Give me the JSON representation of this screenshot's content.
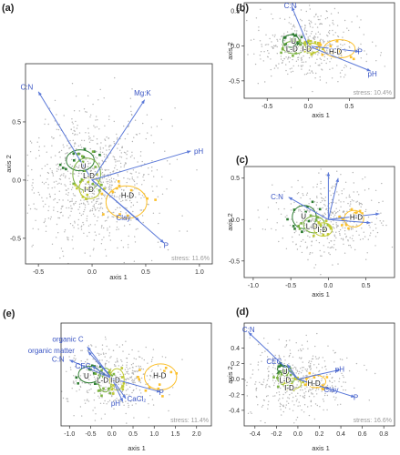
{
  "colors": {
    "arrow": "#5a78d8",
    "arrow_text": "#3a55c4",
    "points": "#b4b4b4",
    "U": "#2e7d32",
    "LD": "#7cb342",
    "ID": "#c0ca33",
    "HD": "#fbc02d",
    "frame": "#333333",
    "stress": "#9a9a9a"
  },
  "chart_data": [
    {
      "panel_label": "(a)",
      "type": "scatter",
      "xlabel": "axis 1",
      "ylabel": "axis 2",
      "xlim": [
        -0.62,
        1.12
      ],
      "ylim": [
        -0.72,
        1.0
      ],
      "xticks": [
        -0.5,
        0.0,
        0.5,
        1.0
      ],
      "xtick_labels": [
        "-0.5",
        "0.0",
        "0.5",
        "1.0"
      ],
      "yticks": [
        -0.5,
        0.0,
        0.5
      ],
      "ytick_labels": [
        "-0.5",
        "0.0",
        "0.5"
      ],
      "stress": "stress: 11.6%",
      "origin": [
        0.0,
        0.0
      ],
      "arrows": [
        {
          "label": "C:N",
          "x": -0.5,
          "y": 0.76,
          "lx": -0.55,
          "ly": 0.8
        },
        {
          "label": "Mg:K",
          "x": 0.49,
          "y": 0.69,
          "lx": 0.47,
          "ly": 0.75
        },
        {
          "label": "pH",
          "x": 0.92,
          "y": 0.25,
          "lx": 0.95,
          "ly": 0.25
        },
        {
          "label": "Clay",
          "x": 0.44,
          "y": -0.35,
          "lx": 0.36,
          "ly": -0.32
        },
        {
          "label": "P",
          "x": 0.67,
          "y": -0.54,
          "lx": 0.69,
          "ly": -0.56
        }
      ],
      "groups": [
        {
          "label": "U",
          "cx": -0.11,
          "cy": 0.17,
          "rx": 0.13,
          "ry": 0.09,
          "color": "#2e7d32",
          "lx": -0.08,
          "ly": 0.12
        },
        {
          "label": "L-D",
          "cx": -0.05,
          "cy": 0.05,
          "rx": 0.13,
          "ry": 0.14,
          "color": "#7cb342",
          "lx": -0.03,
          "ly": 0.04
        },
        {
          "label": "I-D",
          "cx": -0.02,
          "cy": -0.07,
          "rx": 0.1,
          "ry": 0.09,
          "color": "#c0ca33",
          "lx": -0.03,
          "ly": -0.08
        },
        {
          "label": "H-D",
          "cx": 0.32,
          "cy": -0.19,
          "rx": 0.19,
          "ry": 0.14,
          "color": "#fbc02d",
          "lx": 0.33,
          "ly": -0.13
        }
      ]
    },
    {
      "panel_label": "(b)",
      "type": "scatter",
      "xlabel": "axis 1",
      "ylabel": "axis 2",
      "xlim": [
        -0.78,
        1.05
      ],
      "ylim": [
        -0.75,
        0.62
      ],
      "xticks": [
        -0.5,
        0.0,
        0.5
      ],
      "xtick_labels": [
        "-0.5",
        "0.0",
        "0.5"
      ],
      "yticks": [
        -0.5,
        0.0,
        0.5
      ],
      "ytick_labels": [
        "-0.5",
        "0.0",
        "0.5"
      ],
      "stress": "stress: 10.4%",
      "origin": [
        0.0,
        0.0
      ],
      "arrows": [
        {
          "label": "C:N",
          "x": -0.2,
          "y": 0.56,
          "lx": -0.22,
          "ly": 0.58
        },
        {
          "label": "P",
          "x": 0.62,
          "y": -0.08,
          "lx": 0.63,
          "ly": -0.08
        },
        {
          "label": "pH",
          "x": 0.76,
          "y": -0.36,
          "lx": 0.78,
          "ly": -0.4
        }
      ],
      "groups": [
        {
          "label": "U",
          "cx": -0.21,
          "cy": 0.07,
          "rx": 0.1,
          "ry": 0.09,
          "color": "#2e7d32",
          "lx": -0.18,
          "ly": 0.07
        },
        {
          "label": "L-D",
          "cx": -0.17,
          "cy": -0.02,
          "rx": 0.14,
          "ry": 0.09,
          "color": "#7cb342",
          "lx": -0.2,
          "ly": -0.04
        },
        {
          "label": "I-D",
          "cx": 0.04,
          "cy": -0.03,
          "rx": 0.1,
          "ry": 0.07,
          "color": "#c0ca33",
          "lx": -0.02,
          "ly": -0.04
        },
        {
          "label": "H-D",
          "cx": 0.38,
          "cy": -0.04,
          "rx": 0.19,
          "ry": 0.13,
          "color": "#fbc02d",
          "lx": 0.33,
          "ly": -0.08
        }
      ]
    },
    {
      "panel_label": "(c)",
      "type": "scatter",
      "xlabel": "axis 1",
      "ylabel": "axis 2",
      "xlim": [
        -1.12,
        0.88
      ],
      "ylim": [
        -0.7,
        0.64
      ],
      "xticks": [
        -1.0,
        -0.5,
        0.0,
        0.5
      ],
      "xtick_labels": [
        "-1.0",
        "-0.5",
        "0.0",
        "0.5"
      ],
      "yticks": [
        -0.5,
        0.0,
        0.5
      ],
      "ytick_labels": [
        "-0.5",
        "0.0",
        "0.5"
      ],
      "stress": "",
      "origin": [
        0.0,
        0.0
      ],
      "arrows": [
        {
          "label": "C:N",
          "x": -0.53,
          "y": 0.27,
          "lx": -0.6,
          "ly": 0.28
        },
        {
          "label": "",
          "x": 0.0,
          "y": 0.57,
          "lx": 0.0,
          "ly": 0.6
        },
        {
          "label": "",
          "x": 0.13,
          "y": 0.5,
          "lx": 0.13,
          "ly": 0.5
        },
        {
          "label": "",
          "x": 0.68,
          "y": 0.07,
          "lx": 0.68,
          "ly": 0.07
        },
        {
          "label": "",
          "x": 0.56,
          "y": -0.04,
          "lx": 0.56,
          "ly": -0.04
        }
      ],
      "groups": [
        {
          "label": "U",
          "cx": -0.32,
          "cy": 0.03,
          "rx": 0.16,
          "ry": 0.14,
          "color": "#2e7d32",
          "lx": -0.33,
          "ly": 0.04
        },
        {
          "label": "L-D",
          "cx": -0.19,
          "cy": -0.06,
          "rx": 0.14,
          "ry": 0.1,
          "color": "#7cb342",
          "lx": -0.22,
          "ly": -0.08
        },
        {
          "label": "I-D",
          "cx": -0.07,
          "cy": -0.12,
          "rx": 0.12,
          "ry": 0.08,
          "color": "#c0ca33",
          "lx": -0.08,
          "ly": -0.12
        },
        {
          "label": "H-D",
          "cx": 0.34,
          "cy": 0.01,
          "rx": 0.13,
          "ry": 0.1,
          "color": "#fbc02d",
          "lx": 0.37,
          "ly": 0.03
        }
      ]
    },
    {
      "panel_label": "(e)",
      "type": "scatter",
      "xlabel": "axis 1",
      "ylabel": "",
      "xlim": [
        -1.2,
        2.35
      ],
      "ylim": [
        -1.5,
        1.75
      ],
      "xticks": [
        -1.0,
        -0.5,
        0.0,
        0.5,
        1.0,
        1.5,
        2.0
      ],
      "xtick_labels": [
        "-1.0",
        "-0.5",
        "0.0",
        "0.5",
        "1.0",
        "1.5",
        "2.0"
      ],
      "yticks": [],
      "ytick_labels": [],
      "stress": "stress: 11.4%",
      "origin": [
        0.0,
        0.0
      ],
      "arrows": [
        {
          "label": "C:N",
          "x": -1.0,
          "y": 0.58,
          "lx": -1.12,
          "ly": 0.62
        },
        {
          "label": "organic C",
          "x": -0.58,
          "y": 1.0,
          "lx": -0.67,
          "ly": 1.25
        },
        {
          "label": "organic matter",
          "x": -0.56,
          "y": 0.85,
          "lx": -0.88,
          "ly": 0.88
        },
        {
          "label": "CEC",
          "x": -0.47,
          "y": 0.39,
          "lx": -0.5,
          "ly": 0.4
        },
        {
          "label": "CaCl₂",
          "x": 0.33,
          "y": -0.64,
          "lx": 0.36,
          "ly": -0.64
        },
        {
          "label": "pH",
          "x": 0.26,
          "y": -0.74,
          "lx": 0.2,
          "ly": -0.78
        },
        {
          "label": "P",
          "x": 1.15,
          "y": -0.43,
          "lx": 1.17,
          "ly": -0.43
        }
      ],
      "groups": [
        {
          "label": "U",
          "cx": -0.53,
          "cy": 0.12,
          "rx": 0.26,
          "ry": 0.26,
          "color": "#2e7d32",
          "lx": -0.6,
          "ly": 0.08
        },
        {
          "label": "L-D",
          "cx": -0.16,
          "cy": -0.05,
          "rx": 0.16,
          "ry": 0.38,
          "color": "#7cb342",
          "lx": -0.22,
          "ly": -0.05
        },
        {
          "label": "I-D",
          "cx": 0.12,
          "cy": -0.03,
          "rx": 0.17,
          "ry": 0.34,
          "color": "#c0ca33",
          "lx": 0.08,
          "ly": -0.05
        },
        {
          "label": "H-D",
          "cx": 1.15,
          "cy": 0.05,
          "rx": 0.38,
          "ry": 0.41,
          "color": "#fbc02d",
          "lx": 1.13,
          "ly": 0.1
        }
      ]
    },
    {
      "panel_label": "(d)",
      "type": "scatter",
      "xlabel": "axis 1",
      "ylabel": "axis 2",
      "xlim": [
        -0.5,
        0.9
      ],
      "ylim": [
        -0.6,
        0.72
      ],
      "xticks": [
        -0.4,
        -0.2,
        0.0,
        0.2,
        0.4,
        0.6,
        0.8
      ],
      "xtick_labels": [
        "-0.4",
        "-0.2",
        "0.0",
        "0.2",
        "0.4",
        "0.6",
        "0.8"
      ],
      "yticks": [
        -0.4,
        -0.2,
        0.0,
        0.2,
        0.4
      ],
      "ytick_labels": [
        "-0.4",
        "-0.2",
        "0.0",
        "0.2",
        "0.4"
      ],
      "stress": "stress: 16.6%",
      "origin": [
        0.0,
        0.0
      ],
      "arrows": [
        {
          "label": "C:N",
          "x": -0.46,
          "y": 0.6,
          "lx": -0.46,
          "ly": 0.64
        },
        {
          "label": "CEC",
          "x": -0.1,
          "y": 0.19,
          "lx": -0.15,
          "ly": 0.23
        },
        {
          "label": "pH",
          "x": 0.39,
          "y": 0.12,
          "lx": 0.39,
          "ly": 0.13
        },
        {
          "label": "Clay",
          "x": 0.3,
          "y": -0.13,
          "lx": 0.31,
          "ly": -0.13
        },
        {
          "label": "P",
          "x": 0.53,
          "y": -0.23,
          "lx": 0.54,
          "ly": -0.23
        }
      ],
      "groups": [
        {
          "label": "U",
          "cx": -0.14,
          "cy": 0.13,
          "rx": 0.05,
          "ry": 0.05,
          "color": "#2e7d32",
          "lx": -0.12,
          "ly": 0.1
        },
        {
          "label": "L-D",
          "cx": -0.11,
          "cy": 0.02,
          "rx": 0.08,
          "ry": 0.1,
          "color": "#7cb342",
          "lx": -0.12,
          "ly": -0.01
        },
        {
          "label": "I-D",
          "cx": -0.05,
          "cy": -0.06,
          "rx": 0.08,
          "ry": 0.07,
          "color": "#c0ca33",
          "lx": -0.08,
          "ly": -0.11
        },
        {
          "label": "H-D",
          "cx": 0.17,
          "cy": -0.03,
          "rx": 0.09,
          "ry": 0.08,
          "color": "#fbc02d",
          "lx": 0.15,
          "ly": -0.05
        }
      ]
    }
  ]
}
